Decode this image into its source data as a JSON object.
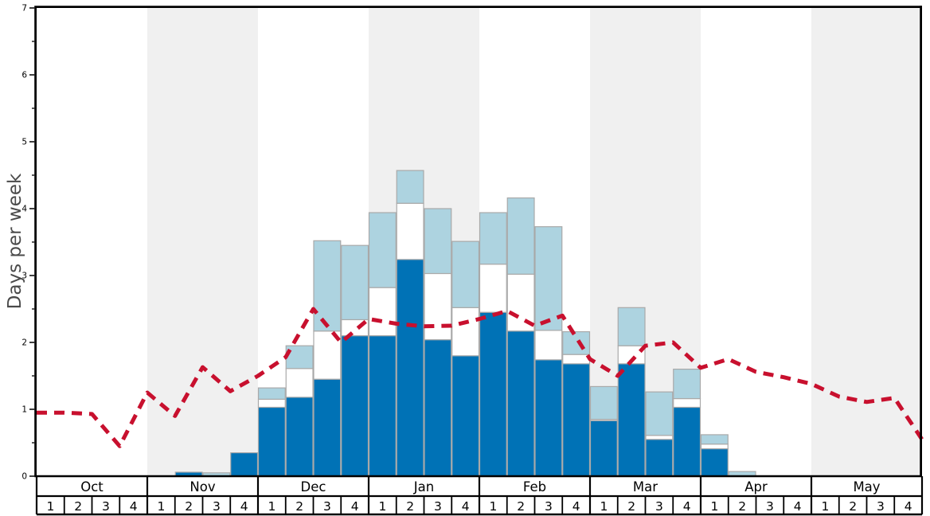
{
  "chart_data": {
    "type": "bar",
    "variant": "stacked-weekly-bars-with-dashed-trend-line",
    "title": "",
    "xlabel": "",
    "ylabel": "Days per week",
    "ylim": [
      0,
      7
    ],
    "y_major_ticks": [
      0,
      1,
      2,
      3,
      4,
      5,
      6,
      7
    ],
    "y_minor_step": 0.5,
    "grid": "off",
    "legend": "none",
    "months": [
      "Oct",
      "Nov",
      "Dec",
      "Jan",
      "Feb",
      "Mar",
      "Apr",
      "May"
    ],
    "week_labels": [
      "1",
      "2",
      "3",
      "4"
    ],
    "shaded_month_indices": [
      1,
      3,
      5,
      7
    ],
    "stack_series": [
      {
        "name": "dark-blue-bottom",
        "color": "#0072B6",
        "cumulative_top": [
          0,
          0,
          0,
          0,
          0,
          0.06,
          0,
          0.35,
          1.03,
          1.18,
          1.45,
          2.1,
          2.1,
          3.24,
          2.04,
          1.8,
          2.45,
          2.17,
          1.74,
          1.68,
          0.83,
          1.68,
          0.55,
          1.03,
          0.41,
          0,
          0,
          0,
          0,
          0,
          0,
          0
        ]
      },
      {
        "name": "white-middle",
        "color": "#FFFFFF",
        "cumulative_top": [
          0,
          0,
          0,
          0,
          0,
          0.06,
          0,
          0.35,
          1.15,
          1.61,
          2.17,
          2.34,
          2.82,
          4.08,
          3.03,
          2.52,
          3.17,
          3.02,
          2.18,
          1.82,
          0.85,
          1.95,
          0.61,
          1.16,
          0.48,
          0,
          0,
          0,
          0,
          0,
          0,
          0
        ]
      },
      {
        "name": "light-blue-top",
        "color": "#ADD3E0",
        "cumulative_top": [
          0,
          0,
          0,
          0,
          0,
          0.06,
          0.05,
          0.35,
          1.32,
          1.95,
          3.52,
          3.45,
          3.94,
          4.57,
          4.0,
          3.51,
          3.94,
          4.16,
          3.73,
          2.16,
          1.34,
          2.52,
          1.26,
          1.6,
          0.62,
          0.07,
          0,
          0,
          0,
          0,
          0,
          0
        ]
      }
    ],
    "trend_line": {
      "name": "red-dashed-line",
      "color": "#C8102E",
      "dash": [
        13,
        9
      ],
      "stroke_width": 5,
      "weekly_values": [
        0.95,
        0.95,
        0.93,
        0.45,
        1.25,
        0.9,
        1.63,
        1.27,
        1.5,
        1.78,
        2.5,
        2.0,
        2.35,
        2.28,
        2.24,
        2.25,
        2.35,
        2.47,
        2.25,
        2.4,
        1.75,
        1.5,
        1.95,
        2.0,
        1.62,
        1.75,
        1.56,
        1.48,
        1.38,
        1.19,
        1.11,
        1.17
      ],
      "right_edge_value": 0.55
    },
    "colors": {
      "band_shade": "#F0F0F0",
      "bar_border": "#A9A9A9",
      "axis": "#000000",
      "axis_title": "#4A4A4A",
      "label_text": "#000000"
    }
  }
}
